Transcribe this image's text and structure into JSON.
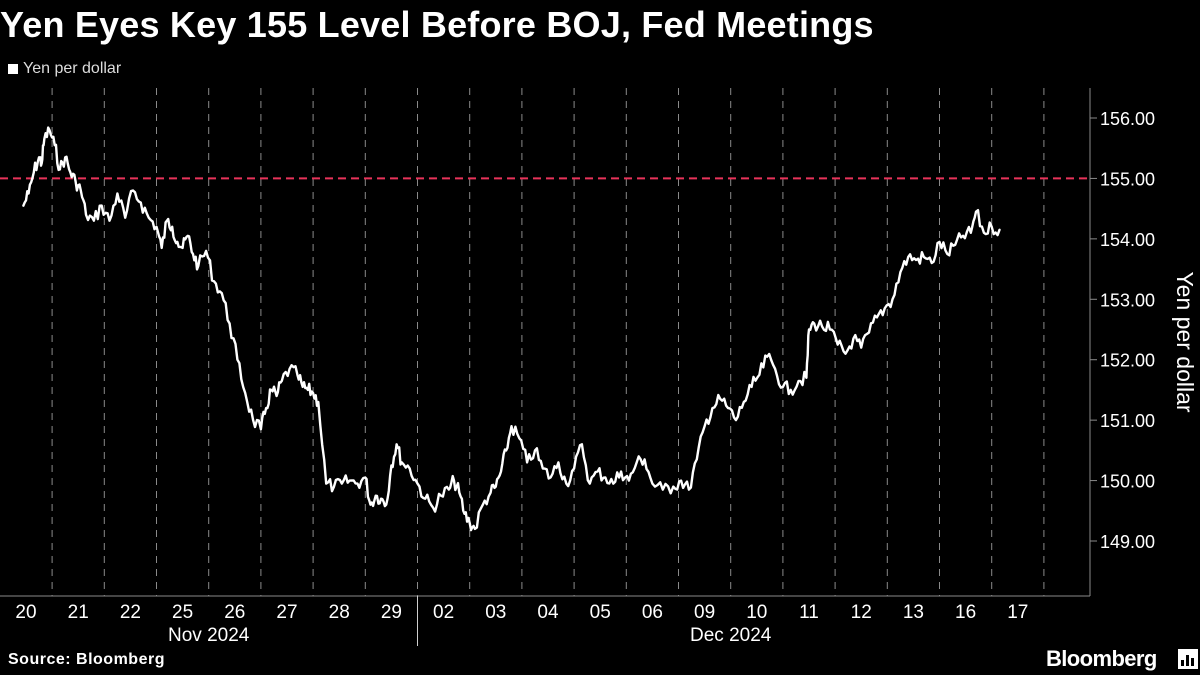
{
  "title": "Yen Eyes Key 155 Level Before BOJ, Fed Meetings",
  "legend_label": "Yen per dollar",
  "source": "Source: Bloomberg",
  "brand": "Bloomberg",
  "colors": {
    "background": "#000000",
    "line": "#ffffff",
    "reference_line": "#e8335a",
    "grid": "#8a8a8a"
  },
  "chart_data": {
    "type": "line",
    "title": "Yen Eyes Key 155 Level Before BOJ, Fed Meetings",
    "ylabel": "Yen per dollar",
    "xlabel": "",
    "ylim": [
      148.0,
      156.45
    ],
    "y_ticks": [
      "149.00",
      "150.00",
      "151.00",
      "152.00",
      "153.00",
      "154.00",
      "155.00",
      "156.00"
    ],
    "y_tick_values": [
      149,
      150,
      151,
      152,
      153,
      154,
      155,
      156
    ],
    "y_axis_side": "right",
    "grid": "vertical dashed",
    "legend": "top-left",
    "x_categories": [
      "20",
      "21",
      "22",
      "25",
      "26",
      "27",
      "28",
      "29",
      "02",
      "03",
      "04",
      "05",
      "06",
      "09",
      "10",
      "11",
      "12",
      "13",
      "16",
      "17"
    ],
    "x_groups": [
      {
        "label": "Nov 2024",
        "from": "20",
        "to": "29"
      },
      {
        "label": "Dec 2024",
        "from": "02",
        "to": "17"
      }
    ],
    "reference_line": {
      "value": 155,
      "style": "dashed"
    },
    "series": [
      {
        "name": "Yen per dollar",
        "x": [
          -0.05,
          0.05,
          0.15,
          0.25,
          0.3,
          0.35,
          0.45,
          0.55,
          0.65,
          0.75,
          0.85,
          0.95,
          1.05,
          1.15,
          1.3,
          1.45,
          1.6,
          1.75,
          1.9,
          2.05,
          2.2,
          2.35,
          2.5,
          2.6,
          2.7,
          2.8,
          2.9,
          3.0,
          3.1,
          3.2,
          3.3,
          3.45,
          3.6,
          3.75,
          3.9,
          4.05,
          4.2,
          4.35,
          4.5,
          4.6,
          4.7,
          4.8,
          4.9,
          5.05,
          5.2,
          5.3,
          5.4,
          5.5,
          5.6,
          5.75,
          5.9,
          6.05,
          6.2,
          6.35,
          6.5,
          6.6,
          6.7,
          6.8,
          6.9,
          7.0,
          7.1,
          7.2,
          7.35,
          7.5,
          7.65,
          7.8,
          7.95,
          8.1,
          8.2,
          8.3,
          8.4,
          8.5,
          8.6,
          8.75,
          8.9,
          9.0,
          9.1,
          9.2,
          9.3,
          9.45,
          9.6,
          9.75,
          9.9,
          10.05,
          10.2,
          10.35,
          10.5,
          10.65,
          10.8,
          10.95,
          11.1,
          11.25,
          11.4,
          11.55,
          11.7,
          11.85,
          12.0,
          12.2,
          12.4,
          12.55,
          12.7,
          12.85,
          13.0,
          13.15,
          13.3,
          13.45,
          13.6,
          13.75,
          13.9,
          14.05,
          14.2,
          14.35,
          14.5,
          14.65,
          14.8,
          14.95,
          15.0,
          15.1,
          15.25,
          15.4,
          15.55,
          15.7,
          15.85,
          16.0,
          16.15,
          16.3,
          16.45,
          16.6,
          16.75,
          16.9,
          17.05,
          17.2,
          17.35,
          17.5,
          17.65,
          17.8,
          17.95,
          18.1,
          18.2,
          18.35,
          18.5,
          18.65
        ],
        "values": [
          154.55,
          154.75,
          155.1,
          155.35,
          155.25,
          155.65,
          155.8,
          155.55,
          155.15,
          155.35,
          155.1,
          154.95,
          154.8,
          154.4,
          154.3,
          154.55,
          154.3,
          154.75,
          154.35,
          154.8,
          154.6,
          154.35,
          154.2,
          153.85,
          154.3,
          154.2,
          153.95,
          153.85,
          154.05,
          153.75,
          153.55,
          153.8,
          153.3,
          153.1,
          152.6,
          152.0,
          151.45,
          151.0,
          150.85,
          151.2,
          151.5,
          151.4,
          151.65,
          151.85,
          151.75,
          151.55,
          151.5,
          151.45,
          151.3,
          149.95,
          149.9,
          149.95,
          150.0,
          149.95,
          150.05,
          149.6,
          149.75,
          149.7,
          149.6,
          150.25,
          150.6,
          150.3,
          150.2,
          149.95,
          149.7,
          149.55,
          149.75,
          149.85,
          150.0,
          149.8,
          149.45,
          149.3,
          149.2,
          149.6,
          149.8,
          149.9,
          150.15,
          150.5,
          150.9,
          150.7,
          150.3,
          150.5,
          150.2,
          150.05,
          150.3,
          149.95,
          150.2,
          150.6,
          149.95,
          150.15,
          150.05,
          149.95,
          150.15,
          150.0,
          150.3,
          150.35,
          149.95,
          149.85,
          149.9,
          150.0,
          149.85,
          150.35,
          150.9,
          151.2,
          151.35,
          151.2,
          151.0,
          151.3,
          151.55,
          151.75,
          152.05,
          151.85,
          151.55,
          151.5,
          151.65,
          151.7,
          152.5,
          152.6,
          152.55,
          152.5,
          152.25,
          152.1,
          152.35,
          152.2,
          152.45,
          152.7,
          152.85,
          153.0,
          153.45,
          153.7,
          153.65,
          153.7,
          153.6,
          153.95,
          153.75,
          153.9,
          154.05,
          154.1,
          154.45,
          154.1,
          154.2,
          154.15
        ]
      }
    ]
  }
}
